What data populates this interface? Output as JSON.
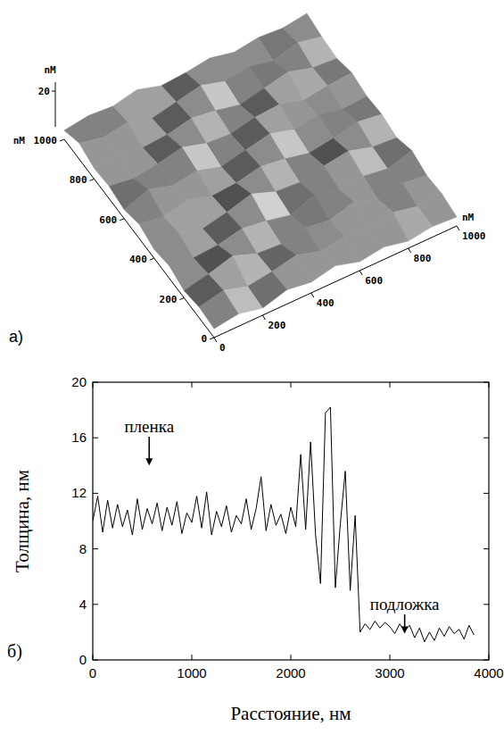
{
  "chart_data": [
    {
      "type": "surface",
      "panel_label": "a)",
      "x_label": "nM",
      "y_label": "nM",
      "z_label": "nM",
      "xlim": [
        0,
        1000
      ],
      "ylim": [
        0,
        1000
      ],
      "zlim": [
        0,
        25
      ],
      "xticks": [
        0,
        200,
        400,
        600,
        800,
        1000
      ],
      "yticks": [
        0,
        200,
        400,
        600,
        800,
        1000
      ],
      "zticks": [
        20
      ],
      "color": "#8c8c8c",
      "heights": [
        [
          5,
          7,
          4,
          8,
          6,
          9,
          5,
          7,
          4,
          6,
          5
        ],
        [
          6,
          9,
          5,
          7,
          10,
          6,
          8,
          5,
          9,
          6,
          7
        ],
        [
          4,
          7,
          11,
          6,
          5,
          8,
          6,
          10,
          5,
          8,
          6
        ],
        [
          7,
          5,
          6,
          9,
          7,
          4,
          9,
          6,
          7,
          5,
          9
        ],
        [
          5,
          8,
          4,
          7,
          11,
          6,
          5,
          8,
          10,
          6,
          5
        ],
        [
          8,
          6,
          9,
          5,
          6,
          9,
          7,
          4,
          6,
          9,
          7
        ],
        [
          5,
          10,
          6,
          8,
          4,
          7,
          10,
          6,
          8,
          5,
          6
        ],
        [
          7,
          5,
          7,
          10,
          6,
          5,
          8,
          9,
          5,
          7,
          8
        ],
        [
          6,
          8,
          5,
          6,
          9,
          7,
          4,
          7,
          10,
          6,
          5
        ],
        [
          9,
          6,
          8,
          4,
          7,
          10,
          6,
          8,
          5,
          9,
          6
        ],
        [
          5,
          7,
          6,
          9,
          5,
          6,
          8,
          5,
          7,
          6,
          8
        ]
      ]
    },
    {
      "type": "line",
      "panel_label": "б)",
      "x_label": "Расстояние, нм",
      "y_label": "Толщина, нм",
      "xlim": [
        0,
        4000
      ],
      "ylim": [
        0,
        20
      ],
      "xticks": [
        0,
        1000,
        2000,
        3000,
        4000
      ],
      "yticks": [
        0,
        4,
        8,
        12,
        16,
        20
      ],
      "color": "#000000",
      "x": [
        0,
        50,
        100,
        150,
        200,
        250,
        300,
        350,
        400,
        450,
        500,
        550,
        600,
        650,
        700,
        750,
        800,
        850,
        900,
        950,
        1000,
        1050,
        1100,
        1150,
        1200,
        1250,
        1300,
        1350,
        1400,
        1450,
        1500,
        1550,
        1600,
        1650,
        1700,
        1750,
        1800,
        1850,
        1900,
        1950,
        2000,
        2050,
        2100,
        2150,
        2200,
        2250,
        2300,
        2350,
        2400,
        2450,
        2500,
        2550,
        2600,
        2650,
        2700,
        2750,
        2800,
        2850,
        2900,
        2950,
        3000,
        3050,
        3100,
        3150,
        3200,
        3250,
        3300,
        3350,
        3400,
        3450,
        3500,
        3550,
        3600,
        3650,
        3700,
        3750,
        3800,
        3850
      ],
      "values": [
        10.0,
        11.8,
        9.2,
        11.5,
        9.5,
        11.2,
        9.6,
        10.8,
        9.0,
        11.6,
        9.4,
        10.9,
        9.8,
        11.3,
        9.3,
        11.0,
        9.7,
        11.4,
        9.1,
        10.6,
        9.9,
        11.8,
        9.5,
        12.1,
        9.0,
        10.7,
        9.6,
        11.1,
        9.2,
        10.4,
        9.8,
        11.6,
        9.4,
        10.9,
        13.2,
        9.3,
        11.2,
        9.7,
        10.5,
        9.1,
        11.0,
        9.6,
        14.8,
        9.4,
        15.7,
        9.0,
        5.5,
        17.8,
        18.2,
        5.2,
        9.8,
        13.6,
        5.0,
        10.4,
        2.0,
        2.6,
        2.2,
        2.8,
        2.3,
        2.7,
        2.4,
        1.9,
        2.6,
        2.1,
        2.5,
        1.6,
        2.3,
        1.3,
        2.0,
        1.4,
        2.3,
        1.7,
        2.4,
        1.9,
        2.2,
        1.5,
        2.5,
        1.8
      ],
      "annotations": [
        {
          "text": "пленка",
          "x": 570,
          "y": 14.0,
          "text_y": 16.4
        },
        {
          "text": "подложка",
          "x": 3150,
          "y": 1.9,
          "text_y": 3.6
        }
      ]
    }
  ]
}
